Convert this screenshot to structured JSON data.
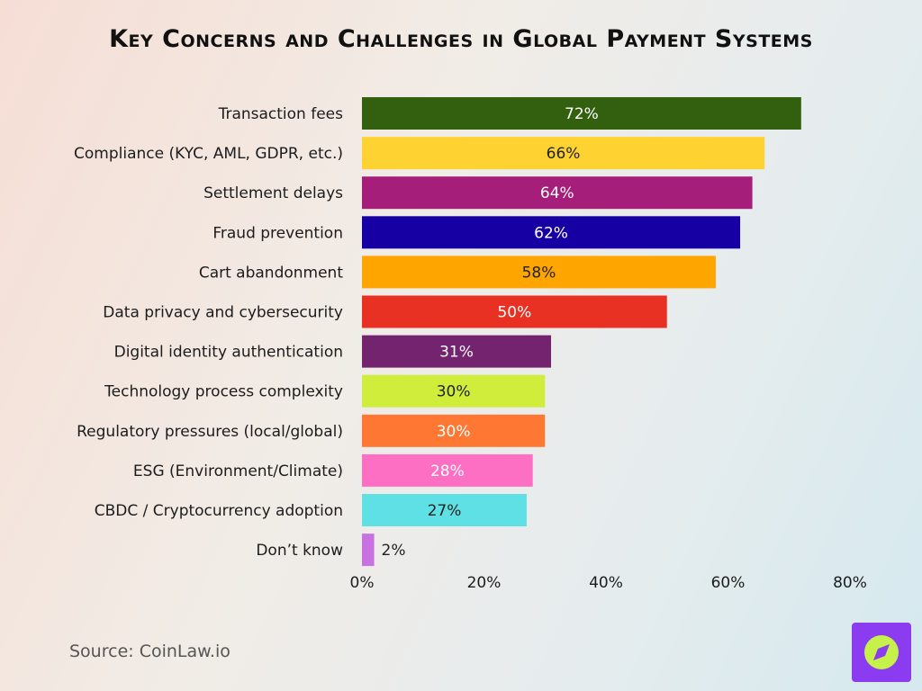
{
  "chart_data": {
    "type": "bar",
    "orientation": "horizontal",
    "title": "Key Concerns and Challenges in Global Payment Systems",
    "categories": [
      "Transaction fees",
      "Compliance (KYC, AML, GDPR, etc.)",
      "Settlement delays",
      "Fraud prevention",
      "Cart abandonment",
      "Data privacy and cybersecurity",
      "Digital identity authentication",
      "Technology process complexity",
      "Regulatory pressures (local/global)",
      "ESG (Environment/Climate)",
      "CBDC / Cryptocurrency adoption",
      "Don’t know"
    ],
    "values": [
      72,
      66,
      64,
      62,
      58,
      50,
      31,
      30,
      30,
      28,
      27,
      2
    ],
    "value_labels": [
      "72%",
      "66%",
      "64%",
      "62%",
      "58%",
      "50%",
      "31%",
      "30%",
      "30%",
      "28%",
      "27%",
      "2%"
    ],
    "colors": [
      "#33600f",
      "#fed231",
      "#a51e7a",
      "#1700a3",
      "#fea500",
      "#e93123",
      "#74236f",
      "#cfed3a",
      "#fe7833",
      "#fd6fc3",
      "#5fe0e5",
      "#c772e0"
    ],
    "label_colors": [
      "#ffffff",
      "#222222",
      "#ffffff",
      "#ffffff",
      "#222222",
      "#ffffff",
      "#ffffff",
      "#222222",
      "#ffffff",
      "#ffffff",
      "#222222",
      "#222222"
    ],
    "xlim": [
      0,
      80
    ],
    "xticks": [
      0,
      20,
      40,
      60,
      80
    ],
    "xtick_labels": [
      "0%",
      "20%",
      "40%",
      "60%",
      "80%"
    ],
    "xlabel": "",
    "ylabel": "",
    "grid": false,
    "legend": "none"
  },
  "source": "Source: CoinLaw.io",
  "logo": {
    "icon": "compass-icon",
    "bg": "#8b3bf0",
    "accent": "#c6f04a"
  }
}
